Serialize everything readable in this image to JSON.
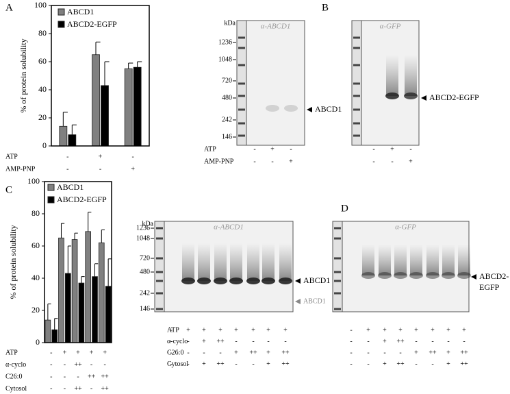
{
  "panel_labels": {
    "a": "A",
    "b": "B",
    "c": "C",
    "d": "D"
  },
  "chart_data": [
    {
      "type": "bar",
      "y_label": "% of protein solubility",
      "categories": [
        null,
        null,
        null
      ],
      "series": [
        {
          "name": "ABCD1",
          "color": "#808080",
          "values": [
            14,
            65,
            55
          ],
          "errors": [
            10,
            9,
            4
          ]
        },
        {
          "name": "ABCD2-EGFP",
          "color": "#000000",
          "values": [
            8,
            43,
            56
          ],
          "errors": [
            7,
            17,
            4
          ]
        }
      ],
      "ylim": [
        0,
        100
      ],
      "yticks": [
        0,
        20,
        40,
        60,
        80,
        100
      ],
      "legend": "upper left",
      "conditions": [
        {
          "name": "ATP",
          "lanes": [
            "-",
            "+",
            "-"
          ]
        },
        {
          "name": "AMP-PNP",
          "lanes": [
            "-",
            "-",
            "+"
          ]
        }
      ]
    },
    {
      "type": "bar",
      "y_label": "% of protein solubility",
      "categories": [
        null,
        null,
        null,
        null,
        null
      ],
      "series": [
        {
          "name": "ABCD1",
          "color": "#808080",
          "values": [
            14,
            65,
            64,
            69,
            62
          ],
          "errors": [
            10,
            9,
            4,
            12,
            8
          ]
        },
        {
          "name": "ABCD2-EGFP",
          "color": "#000000",
          "values": [
            8,
            43,
            37,
            41,
            35
          ],
          "errors": [
            7,
            17,
            4,
            8,
            17
          ]
        }
      ],
      "ylim": [
        0,
        100
      ],
      "yticks": [
        0,
        20,
        40,
        60,
        80,
        100
      ],
      "legend": "upper left",
      "conditions": [
        {
          "name": "ATP",
          "lanes": [
            "-",
            "+",
            "+",
            "+",
            "+"
          ]
        },
        {
          "name": "α-cyclo",
          "lanes": [
            "-",
            "-",
            "++",
            "-",
            "-"
          ]
        },
        {
          "name": "C26:0",
          "lanes": [
            "-",
            "-",
            "-",
            "++",
            "++"
          ]
        },
        {
          "name": "Cytosol",
          "lanes": [
            "-",
            "-",
            "++",
            "-",
            "++"
          ]
        }
      ]
    }
  ],
  "blots_b": {
    "blots": [
      {
        "title": "α-ABCD1",
        "kda": "kDa",
        "markers": [
          1236,
          1048,
          720,
          480,
          242,
          146
        ],
        "band": [
          "ABCD1"
        ]
      },
      {
        "title": "α-GFP",
        "band": [
          "ABCD2-EGFP"
        ]
      }
    ],
    "conditions": [
      {
        "name": "ATP",
        "lanes": [
          "-",
          "+",
          "-"
        ]
      },
      {
        "name": "AMP-PNP",
        "lanes": [
          "-",
          "-",
          "+"
        ]
      }
    ]
  },
  "blot_c": {
    "title": "α-ABCD1",
    "kda": "kDa",
    "markers": [
      1236,
      1048,
      720,
      480,
      242,
      146
    ],
    "band": [
      "ABCD1"
    ],
    "band_secondary": "ABCD1",
    "conditions": [
      {
        "name": "ATP",
        "lanes": [
          "-",
          "+",
          "+",
          "+",
          "+",
          "+",
          "+",
          "+"
        ]
      },
      {
        "name": "α-cyclo",
        "lanes": [
          "-",
          "-",
          "+",
          "++",
          "-",
          "-",
          "-",
          "-"
        ]
      },
      {
        "name": "C26:0",
        "lanes": [
          "-",
          "-",
          "-",
          "-",
          "+",
          "++",
          "+",
          "++"
        ]
      },
      {
        "name": "Cytosol",
        "lanes": [
          "-",
          "-",
          "+",
          "++",
          "-",
          "-",
          "+",
          "++"
        ]
      }
    ]
  },
  "blot_d": {
    "title": "α-GFP",
    "band": [
      "ABCD2-",
      "EGFP"
    ]
  }
}
